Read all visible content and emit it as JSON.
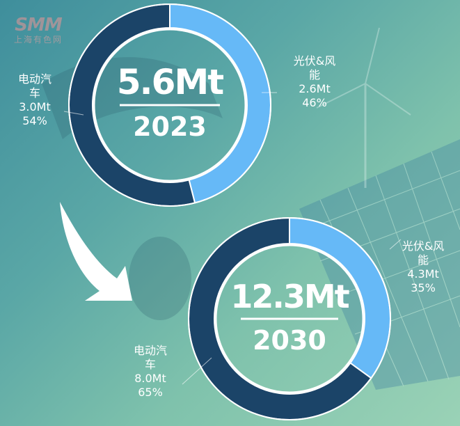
{
  "watermark": {
    "brand": "SMM",
    "sub": "上海有色网"
  },
  "colors": {
    "ev": "#1b4468",
    "pv_wind": "#66b9f7",
    "text": "#ffffff"
  },
  "chart_data": [
    {
      "type": "pie",
      "style": "donut",
      "total_label": "5.6Mt",
      "year": "2023",
      "slices": [
        {
          "name_line1": "电动汽",
          "name_line2": "车",
          "value_label": "3.0Mt",
          "pct_label": "54%",
          "value": 3.0,
          "pct": 54,
          "color": "#1b4468"
        },
        {
          "name_line1": "光伏&风",
          "name_line2": "能",
          "value_label": "2.6Mt",
          "pct_label": "46%",
          "value": 2.6,
          "pct": 46,
          "color": "#66b9f7"
        }
      ]
    },
    {
      "type": "pie",
      "style": "donut",
      "total_label": "12.3Mt",
      "year": "2030",
      "slices": [
        {
          "name_line1": "电动汽",
          "name_line2": "车",
          "value_label": "8.0Mt",
          "pct_label": "65%",
          "value": 8.0,
          "pct": 65,
          "color": "#1b4468"
        },
        {
          "name_line1": "光伏&风",
          "name_line2": "能",
          "value_label": "4.3Mt",
          "pct_label": "35%",
          "value": 4.3,
          "pct": 35,
          "color": "#66b9f7"
        }
      ]
    }
  ]
}
